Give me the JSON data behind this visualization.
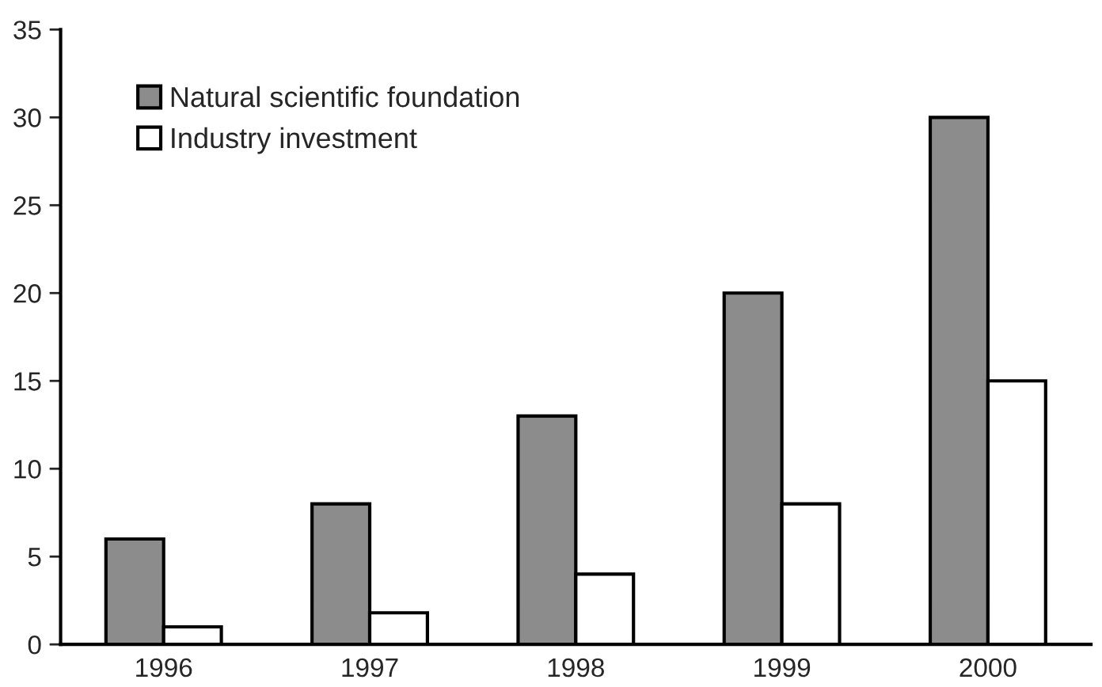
{
  "chart_data": {
    "type": "bar",
    "categories": [
      "1996",
      "1997",
      "1998",
      "1999",
      "2000"
    ],
    "series": [
      {
        "name": "Natural scientific foundation",
        "color": "#8c8c8c",
        "values": [
          6,
          8,
          13,
          20,
          30
        ]
      },
      {
        "name": "Industry investment",
        "color": "#ffffff",
        "values": [
          1,
          1.8,
          4,
          8,
          15
        ]
      }
    ],
    "ylim": [
      0,
      35
    ],
    "yticks": [
      0,
      5,
      10,
      15,
      20,
      25,
      30,
      35
    ],
    "grid": false,
    "legend": "top left"
  }
}
